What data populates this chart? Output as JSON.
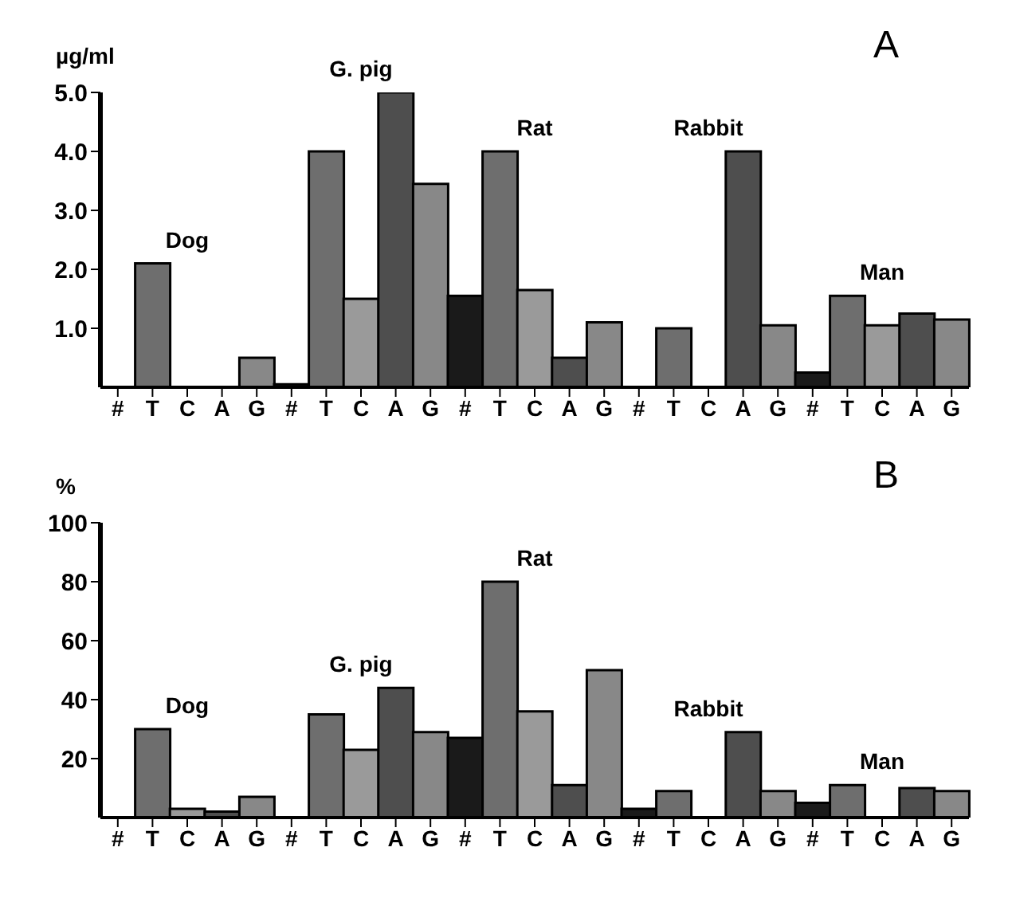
{
  "chart_data": [
    {
      "type": "bar",
      "title": "A",
      "ylabel": "µg/ml",
      "categories": [
        "#",
        "T",
        "C",
        "A",
        "G",
        "#",
        "T",
        "C",
        "A",
        "G",
        "#",
        "T",
        "C",
        "A",
        "G",
        "#",
        "T",
        "C",
        "A",
        "G",
        "#",
        "T",
        "C",
        "A",
        "G"
      ],
      "values": [
        0,
        2.1,
        0,
        0,
        0.5,
        0.05,
        4.0,
        1.5,
        5.0,
        3.45,
        1.55,
        4.0,
        1.65,
        0.5,
        1.1,
        0,
        1.0,
        0,
        4.0,
        1.05,
        0.25,
        1.55,
        1.05,
        1.25,
        1.15
      ],
      "colors": [
        "#1a1a1a",
        "#6e6e6e",
        "#9a9a9a",
        "#4e4e4e",
        "#888888",
        "#1a1a1a",
        "#6e6e6e",
        "#9a9a9a",
        "#4e4e4e",
        "#888888",
        "#1a1a1a",
        "#6e6e6e",
        "#9a9a9a",
        "#4e4e4e",
        "#888888",
        "#1a1a1a",
        "#6e6e6e",
        "#9a9a9a",
        "#4e4e4e",
        "#888888",
        "#1a1a1a",
        "#6e6e6e",
        "#9a9a9a",
        "#4e4e4e",
        "#888888"
      ],
      "ylim": [
        0,
        5
      ],
      "yticks": [
        {
          "value": 1,
          "label": "1.0"
        },
        {
          "value": 2,
          "label": "2.0"
        },
        {
          "value": 3,
          "label": "3.0"
        },
        {
          "value": 4,
          "label": "4.0"
        },
        {
          "value": 5,
          "label": "5.0"
        }
      ],
      "annotations": [
        "Dog",
        "G. pig",
        "Rat",
        "Rabbit",
        "Man"
      ],
      "grid": false,
      "legend": false
    },
    {
      "type": "bar",
      "title": "B",
      "ylabel": "%",
      "categories": [
        "#",
        "T",
        "C",
        "A",
        "G",
        "#",
        "T",
        "C",
        "A",
        "G",
        "#",
        "T",
        "C",
        "A",
        "G",
        "#",
        "T",
        "C",
        "A",
        "G",
        "#",
        "T",
        "C",
        "A",
        "G"
      ],
      "values": [
        0,
        30,
        3,
        2,
        7,
        0,
        35,
        23,
        44,
        29,
        27,
        80,
        36,
        11,
        50,
        3,
        9,
        0,
        29,
        9,
        5,
        11,
        0,
        10,
        9
      ],
      "colors": [
        "#1a1a1a",
        "#6e6e6e",
        "#9a9a9a",
        "#4e4e4e",
        "#888888",
        "#1a1a1a",
        "#6e6e6e",
        "#9a9a9a",
        "#4e4e4e",
        "#888888",
        "#1a1a1a",
        "#6e6e6e",
        "#9a9a9a",
        "#4e4e4e",
        "#888888",
        "#1a1a1a",
        "#6e6e6e",
        "#9a9a9a",
        "#4e4e4e",
        "#888888",
        "#1a1a1a",
        "#6e6e6e",
        "#9a9a9a",
        "#4e4e4e",
        "#888888"
      ],
      "ylim": [
        0,
        100
      ],
      "yticks": [
        20,
        40,
        60,
        80,
        100
      ],
      "annotations": [
        "Dog",
        "G. pig",
        "Rat",
        "Rabbit",
        "Man"
      ],
      "grid": false,
      "legend": false
    }
  ]
}
